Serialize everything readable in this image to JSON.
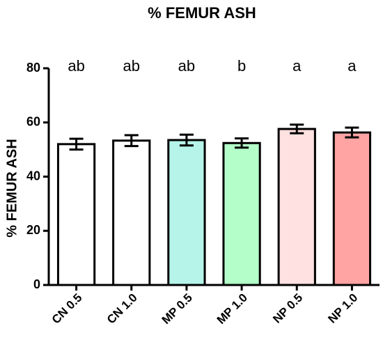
{
  "chart_data": {
    "type": "bar",
    "title": "% FEMUR ASH",
    "y_label": "% FEMUR ASH",
    "categories": [
      "CN 0.5",
      "CN 1.0",
      "MP 0.5",
      "MP 1.0",
      "NP 0.5",
      "NP 1.0"
    ],
    "values": [
      52.0,
      53.3,
      53.5,
      52.4,
      57.6,
      56.3
    ],
    "errors": [
      2.0,
      2.0,
      2.0,
      1.7,
      1.6,
      1.8
    ],
    "letters": [
      "ab",
      "ab",
      "ab",
      "b",
      "a",
      "a"
    ],
    "colors": [
      "#ffffff",
      "#ffffff",
      "#b6f4ea",
      "#b4ffc9",
      "#ffe1e1",
      "#ffa3a3"
    ],
    "ylim": [
      0,
      80
    ],
    "yticks": [
      0,
      20,
      40,
      60,
      80
    ]
  }
}
